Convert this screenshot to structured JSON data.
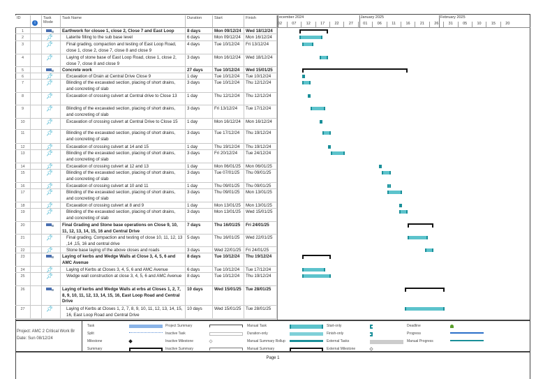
{
  "columns": {
    "id": "ID",
    "mode": "Task Mode",
    "name": "Task Name",
    "duration": "Duration",
    "start": "Start",
    "finish": "Finish"
  },
  "timescale": {
    "months": [
      {
        "label": "ecember 2024",
        "date": "2024-12-01"
      },
      {
        "label": "January 2025",
        "date": "2024-12-30"
      },
      {
        "label": "February 2025",
        "date": "2025-01-27"
      }
    ],
    "ticks": [
      "02",
      "07",
      "12",
      "17",
      "22",
      "27",
      "01",
      "06",
      "11",
      "16",
      "21",
      "26",
      "31",
      "05",
      "10",
      "15",
      "20"
    ]
  },
  "colors": {
    "manual_task": "#5cc3cc",
    "manual_task_end": "#1a8f99",
    "summary": "#111111",
    "task": "#8ab4e8",
    "deadline": "#5aa02c"
  },
  "tasks": [
    {
      "id": "1",
      "type": "summary",
      "name": "Earthwork for closee 1, close 2, Close 7 and East Loop",
      "duration": "8 days",
      "start": "Mon 09/12/24",
      "finish": "Wed 18/12/24"
    },
    {
      "id": "2",
      "type": "manual",
      "name": "Laterite filling to the sub base level",
      "duration": "6 days",
      "start": "Mon 09/12/24",
      "finish": "Mon 16/12/24"
    },
    {
      "id": "3",
      "type": "manual",
      "name": "Final grading, compaction and testing of East Loop Road, close 1, close 2, close 7, close 8 and close 9",
      "duration": "4 days",
      "start": "Tue 10/12/24",
      "finish": "Fri 13/12/24"
    },
    {
      "id": "4",
      "type": "manual",
      "name": "Laying of stone base of East Loop Road, close 1, close 2, close 7, close 8 and close 9",
      "duration": "3 days",
      "start": "Mon 16/12/24",
      "finish": "Wed 18/12/24"
    },
    {
      "id": "5",
      "type": "summary",
      "name": "Concrete work",
      "duration": "27 days",
      "start": "Tue 10/12/24",
      "finish": "Wed 15/01/25"
    },
    {
      "id": "6",
      "type": "manual",
      "name": "Excavation of Drain at Central Drive Close 9",
      "duration": "1 day",
      "start": "Tue 10/12/24",
      "finish": "Tue 10/12/24"
    },
    {
      "id": "7",
      "type": "manual",
      "name": "Blinding of the excavated section, placing of short drains, and concreting of slab",
      "duration": "3 days",
      "start": "Tue 10/12/24",
      "finish": "Thu 12/12/24"
    },
    {
      "id": "8",
      "type": "manual",
      "name": "Excavation of crossing culvert at Central drive to Close 13",
      "duration": "1 day",
      "start": "Thu 12/12/24",
      "finish": "Thu 12/12/24"
    },
    {
      "id": "9",
      "type": "manual",
      "name": "Blinding of the excavated section, placing of short drains, and concreting of slab",
      "duration": "3 days",
      "start": "Fri 13/12/24",
      "finish": "Tue 17/12/24"
    },
    {
      "id": "10",
      "type": "manual",
      "name": "Excavation of crossing culvert at Central Drive to Close 15",
      "duration": "1 day",
      "start": "Mon 16/12/24",
      "finish": "Mon 16/12/24"
    },
    {
      "id": "11",
      "type": "manual",
      "name": "Blinding of the excavated section, placing of short drains, and concreting of slab",
      "duration": "3 days",
      "start": "Tue 17/12/24",
      "finish": "Thu 19/12/24"
    },
    {
      "id": "12",
      "type": "manual",
      "name": "Excavation of crossing culvert at 14 and 15",
      "duration": "1 day",
      "start": "Thu 19/12/24",
      "finish": "Thu 19/12/24"
    },
    {
      "id": "13",
      "type": "manual",
      "name": "Blinding of the excavated section, placing of short drains, and concreting of slab",
      "duration": "3 days",
      "start": "Fri 20/12/24",
      "finish": "Tue 24/12/24"
    },
    {
      "id": "14",
      "type": "manual",
      "name": "Excavation of crossing culvert at 12 and 13",
      "duration": "1 day",
      "start": "Mon 06/01/25",
      "finish": "Mon 06/01/25"
    },
    {
      "id": "15",
      "type": "manual",
      "name": "Blinding of the excavated section, placing of short drains, and concreting of slab",
      "duration": "3 days",
      "start": "Tue 07/01/25",
      "finish": "Thu 09/01/25"
    },
    {
      "id": "16",
      "type": "manual",
      "name": "Excavation of crossing culvert at 10 and 11",
      "duration": "1 day",
      "start": "Thu 09/01/25",
      "finish": "Thu 09/01/25"
    },
    {
      "id": "17",
      "type": "manual",
      "name": "Blinding of the excavated section, placing of short drains, and concreting of slab",
      "duration": "3 days",
      "start": "Thu 09/01/25",
      "finish": "Mon 13/01/25"
    },
    {
      "id": "18",
      "type": "manual",
      "name": "Excavation of crossing culvert at 8 and 9",
      "duration": "1 day",
      "start": "Mon 13/01/25",
      "finish": "Mon 13/01/25"
    },
    {
      "id": "19",
      "type": "manual",
      "name": "Blinding of the excavated section, placing of short drains, and concreting of slab",
      "duration": "3 days",
      "start": "Mon 13/01/25",
      "finish": "Wed 15/01/25"
    },
    {
      "id": "20",
      "type": "summary",
      "name": "Final Grading and Stone base operations on Close 9, 10, 11, 12, 13, 14, 15, 16 and Central Drive",
      "duration": "7 days",
      "start": "Thu 16/01/25",
      "finish": "Fri 24/01/25"
    },
    {
      "id": "21",
      "type": "manual",
      "name": "Final grading. Compaction and testing of close 10, 11, 12, 13 ,14 ,15, 16 and central drive",
      "duration": "5 days",
      "start": "Thu 16/01/25",
      "finish": "Wed 22/01/25"
    },
    {
      "id": "22",
      "type": "manual",
      "name": "Stone base laying of the above closes and roads",
      "duration": "3 days",
      "start": "Wed 22/01/25",
      "finish": "Fri 24/01/25"
    },
    {
      "id": "23",
      "type": "summary",
      "name": "Laying of kerbs and Wedge Walls at Close 3, 4, 5, 6 and AMC Avenue",
      "duration": "8 days",
      "start": "Tue 10/12/24",
      "finish": "Thu 19/12/24"
    },
    {
      "id": "24",
      "type": "manual",
      "name": "Laying of Kerbs at Closes 3, 4, 5, 6 and AMC Avenue",
      "duration": "6 days",
      "start": "Tue 10/12/24",
      "finish": "Tue 17/12/24"
    },
    {
      "id": "25",
      "type": "manual",
      "name": "Wedge wall construction at close 3, 4, 5, 6 and AMC Avenue",
      "duration": "8 days",
      "start": "Tue 10/12/24",
      "finish": "Thu 19/12/24"
    },
    {
      "id": "26",
      "type": "summary",
      "name": "Laying of kerbs and Wedge Walls at erbs at Closes 1, 2, 7, 8, 9, 10, 11, 12, 13, 14, 15, 16, East Loop Road and Central Drive",
      "duration": "10 days",
      "start": "Wed 15/01/25",
      "finish": "Tue 28/01/25"
    },
    {
      "id": "27",
      "type": "manual",
      "name": "Laying of Kerbs at Closes 1, 2, 7, 8, 9, 10, 11, 12, 13, 14, 15, 16, East Loop Road and Central Drive",
      "duration": "10 days",
      "start": "Wed 15/01/25",
      "finish": "Tue 28/01/25"
    }
  ],
  "footer": {
    "project": "Project: AMC 2 Critical Work Br",
    "date": "Date: Sun 08/12/24",
    "page": "Page 1"
  },
  "legend": [
    [
      "Task",
      "Split",
      "Milestone",
      "Summary"
    ],
    [
      "Project Summary",
      "Inactive Task",
      "Inactive Milestone",
      "Inactive Summary"
    ],
    [
      "Manual Task",
      "Duration-only",
      "Manual Summary Rollup",
      "Manual Summary"
    ],
    [
      "Start-only",
      "Finish-only",
      "External Tasks",
      "External Milestone"
    ],
    [
      "Deadline",
      "Progress",
      "Manual Progress"
    ]
  ]
}
